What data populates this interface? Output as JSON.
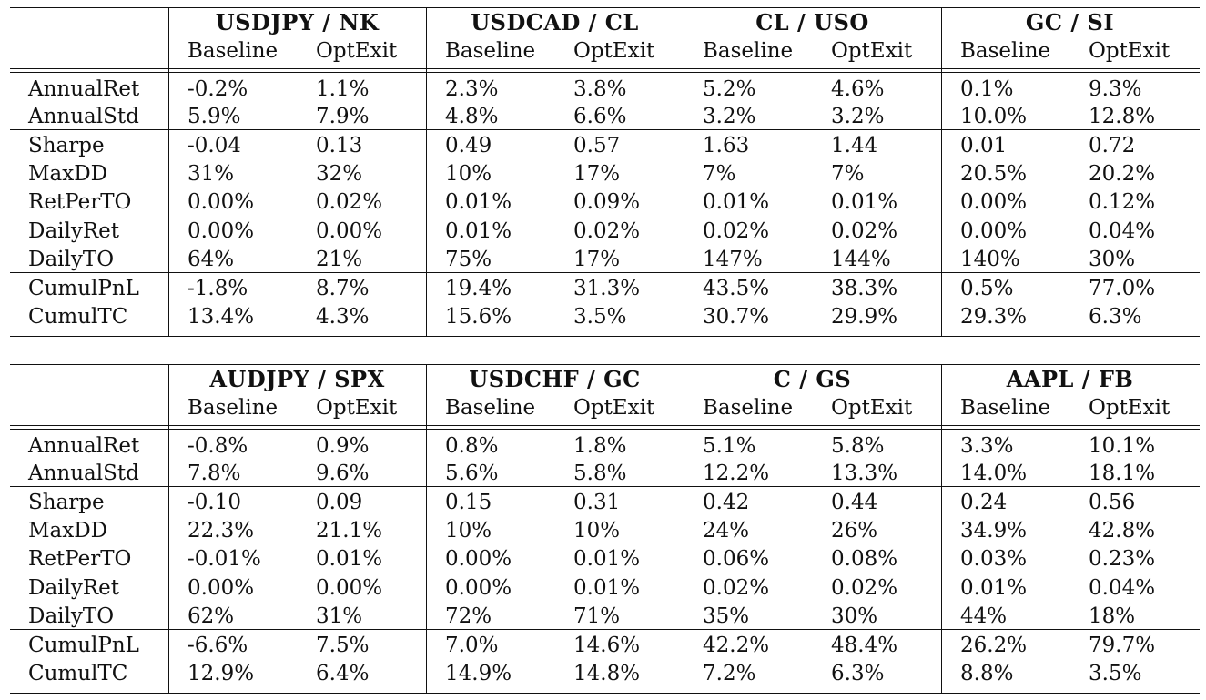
{
  "tables": [
    {
      "groups": [
        "USDJPY / NK",
        "USDCAD / CL",
        "CL / USO",
        "GC / SI"
      ],
      "subheaders": [
        "Baseline",
        "OptExit"
      ],
      "rows": [
        {
          "label": "AnnualRet",
          "values": [
            "-0.2%",
            "1.1%",
            "2.3%",
            "3.8%",
            "5.2%",
            "4.6%",
            "0.1%",
            "9.3%"
          ]
        },
        {
          "label": "AnnualStd",
          "values": [
            "5.9%",
            "7.9%",
            "4.8%",
            "6.6%",
            "3.2%",
            "3.2%",
            "10.0%",
            "12.8%"
          ]
        },
        {
          "label": "Sharpe",
          "values": [
            "-0.04",
            "0.13",
            "0.49",
            "0.57",
            "1.63",
            "1.44",
            "0.01",
            "0.72"
          ]
        },
        {
          "label": "MaxDD",
          "values": [
            "31%",
            "32%",
            "10%",
            "17%",
            "7%",
            "7%",
            "20.5%",
            "20.2%"
          ]
        },
        {
          "label": "RetPerTO",
          "values": [
            "0.00%",
            "0.02%",
            "0.01%",
            "0.09%",
            "0.01%",
            "0.01%",
            "0.00%",
            "0.12%"
          ]
        },
        {
          "label": "DailyRet",
          "values": [
            "0.00%",
            "0.00%",
            "0.01%",
            "0.02%",
            "0.02%",
            "0.02%",
            "0.00%",
            "0.04%"
          ]
        },
        {
          "label": "DailyTO",
          "values": [
            "64%",
            "21%",
            "75%",
            "17%",
            "147%",
            "144%",
            "140%",
            "30%"
          ]
        },
        {
          "label": "CumulPnL",
          "values": [
            "-1.8%",
            "8.7%",
            "19.4%",
            "31.3%",
            "43.5%",
            "38.3%",
            "0.5%",
            "77.0%"
          ]
        },
        {
          "label": "CumulTC",
          "values": [
            "13.4%",
            "4.3%",
            "15.6%",
            "3.5%",
            "30.7%",
            "29.9%",
            "29.3%",
            "6.3%"
          ]
        }
      ]
    },
    {
      "groups": [
        "AUDJPY / SPX",
        "USDCHF / GC",
        "C / GS",
        "AAPL / FB"
      ],
      "subheaders": [
        "Baseline",
        "OptExit"
      ],
      "rows": [
        {
          "label": "AnnualRet",
          "values": [
            "-0.8%",
            "0.9%",
            "0.8%",
            "1.8%",
            "5.1%",
            "5.8%",
            "3.3%",
            "10.1%"
          ]
        },
        {
          "label": "AnnualStd",
          "values": [
            "7.8%",
            "9.6%",
            "5.6%",
            "5.8%",
            "12.2%",
            "13.3%",
            "14.0%",
            "18.1%"
          ]
        },
        {
          "label": "Sharpe",
          "values": [
            "-0.10",
            "0.09",
            "0.15",
            "0.31",
            "0.42",
            "0.44",
            "0.24",
            "0.56"
          ]
        },
        {
          "label": "MaxDD",
          "values": [
            "22.3%",
            "21.1%",
            "10%",
            "10%",
            "24%",
            "26%",
            "34.9%",
            "42.8%"
          ]
        },
        {
          "label": "RetPerTO",
          "values": [
            "-0.01%",
            "0.01%",
            "0.00%",
            "0.01%",
            "0.06%",
            "0.08%",
            "0.03%",
            "0.23%"
          ]
        },
        {
          "label": "DailyRet",
          "values": [
            "0.00%",
            "0.00%",
            "0.00%",
            "0.01%",
            "0.02%",
            "0.02%",
            "0.01%",
            "0.04%"
          ]
        },
        {
          "label": "DailyTO",
          "values": [
            "62%",
            "31%",
            "72%",
            "71%",
            "35%",
            "30%",
            "44%",
            "18%"
          ]
        },
        {
          "label": "CumulPnL",
          "values": [
            "-6.6%",
            "7.5%",
            "7.0%",
            "14.6%",
            "42.2%",
            "48.4%",
            "26.2%",
            "79.7%"
          ]
        },
        {
          "label": "CumulTC",
          "values": [
            "12.9%",
            "6.4%",
            "14.9%",
            "14.8%",
            "7.2%",
            "6.3%",
            "8.8%",
            "3.5%"
          ]
        }
      ]
    }
  ]
}
